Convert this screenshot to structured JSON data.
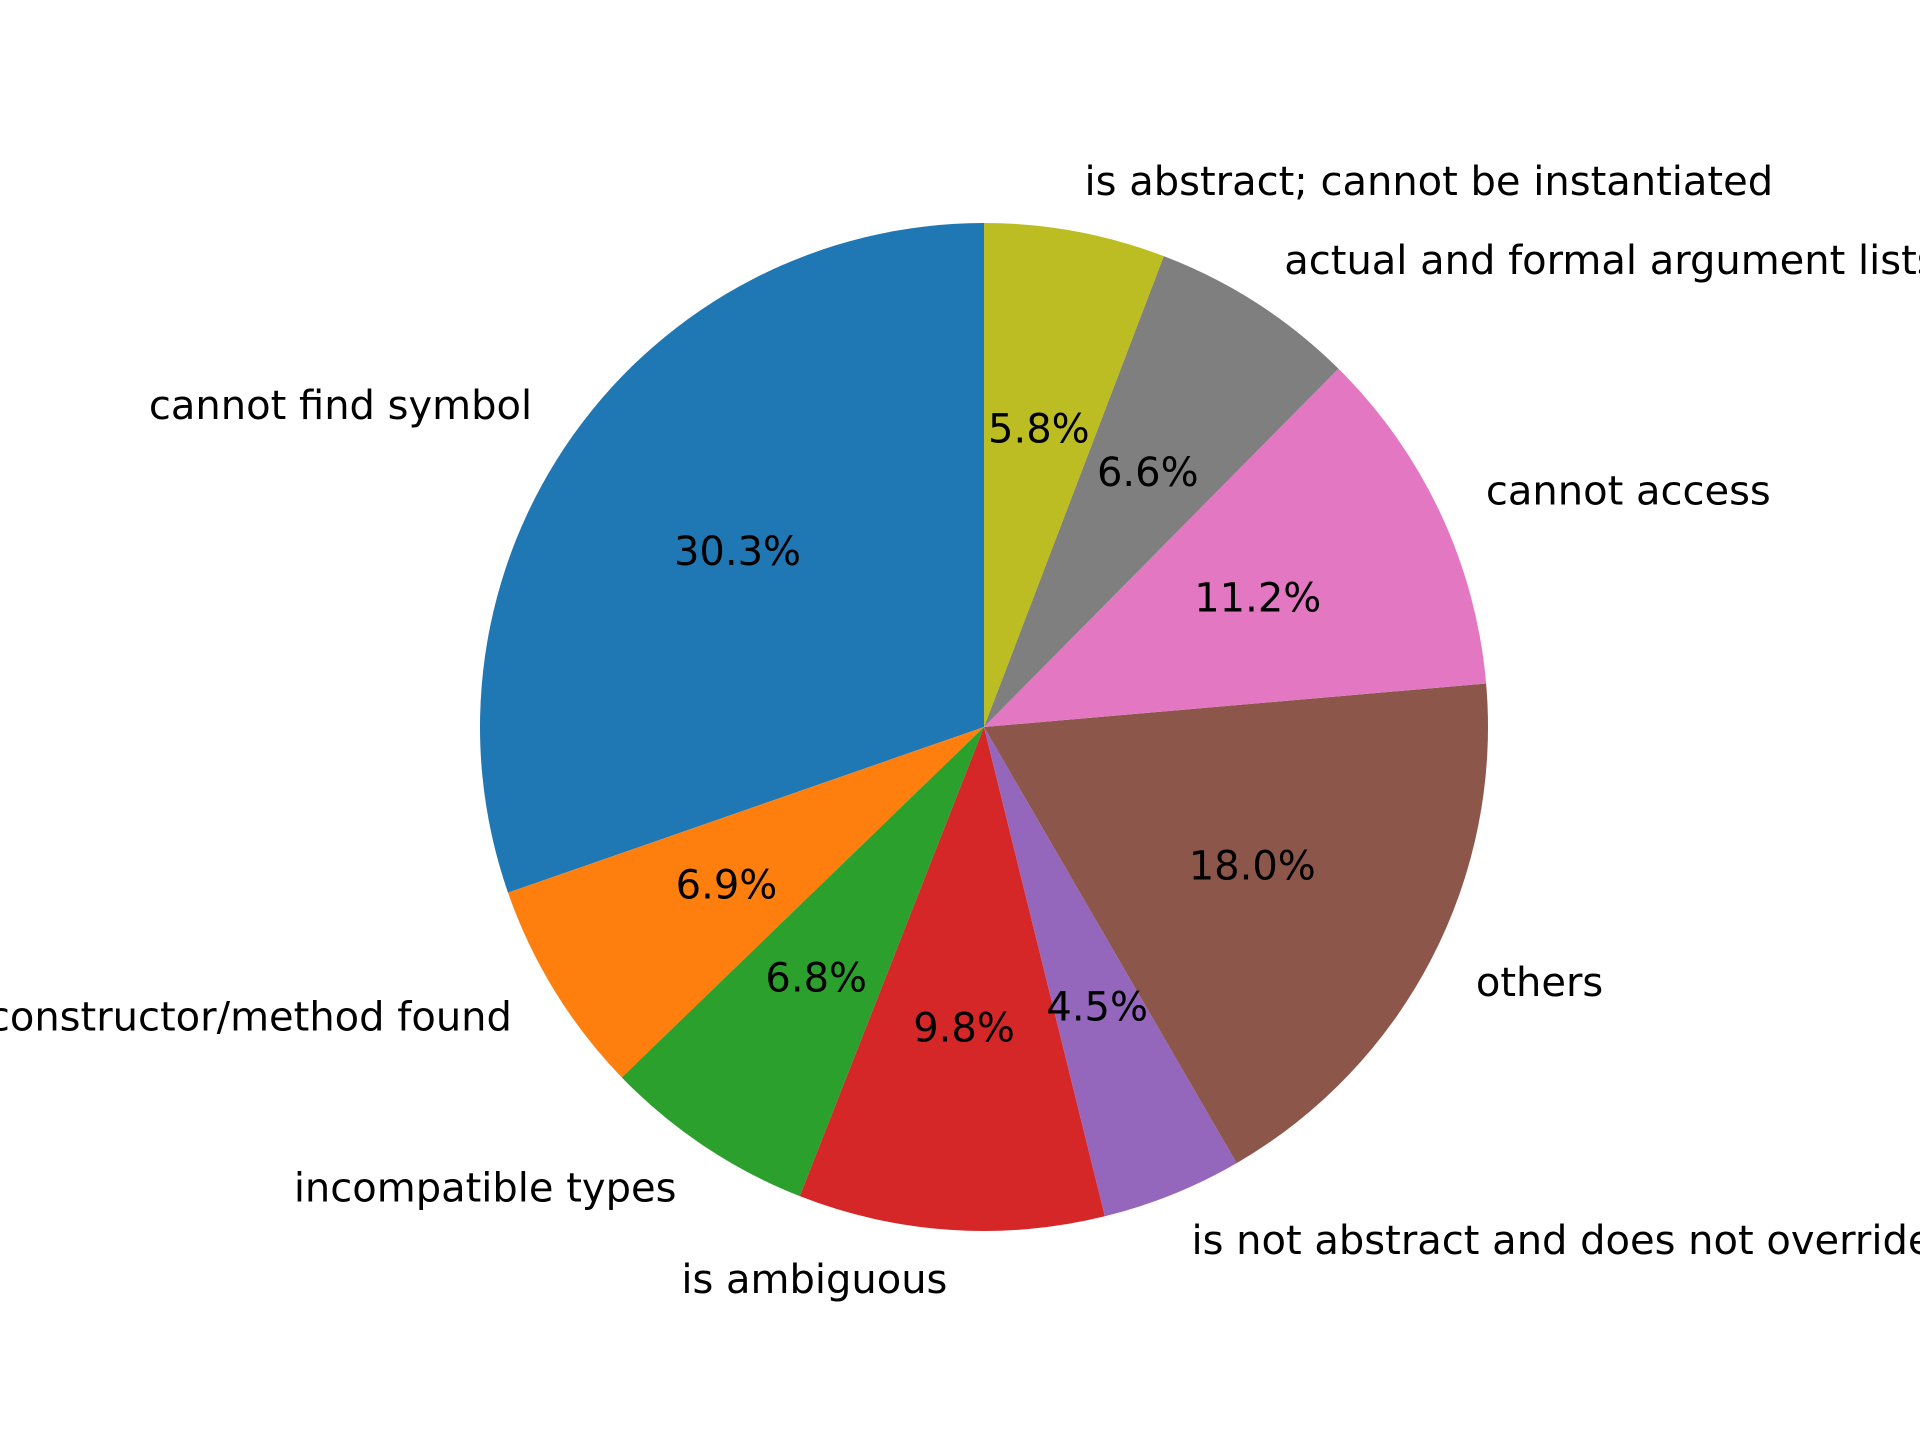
{
  "chart_data": {
    "type": "pie",
    "title": "",
    "start_angle_deg": 90,
    "direction": "clockwise",
    "slices": [
      {
        "label": "cannot find symbol",
        "value": 30.3,
        "pct_text": "30.3%",
        "color": "#1f77b4"
      },
      {
        "label": "no suitable constructor/method found",
        "value": 6.9,
        "pct_text": "6.9%",
        "color": "#ff7f0e"
      },
      {
        "label": "incompatible types",
        "value": 6.8,
        "pct_text": "6.8%",
        "color": "#2ca02c"
      },
      {
        "label": "is ambiguous",
        "value": 9.8,
        "pct_text": "9.8%",
        "color": "#d62728"
      },
      {
        "label": "is not abstract and does not override abstract method",
        "value": 4.5,
        "pct_text": "4.5%",
        "color": "#9467bd"
      },
      {
        "label": "others",
        "value": 18.0,
        "pct_text": "18.0%",
        "color": "#8c564b"
      },
      {
        "label": "cannot access",
        "value": 11.2,
        "pct_text": "11.2%",
        "color": "#e377c2"
      },
      {
        "label": "actual and formal argument lists differ in length",
        "value": 6.6,
        "pct_text": "6.6%",
        "color": "#7f7f7f"
      },
      {
        "label": "is abstract; cannot be instantiated",
        "value": 5.8,
        "pct_text": "5.8%",
        "color": "#bcbd22"
      }
    ]
  }
}
